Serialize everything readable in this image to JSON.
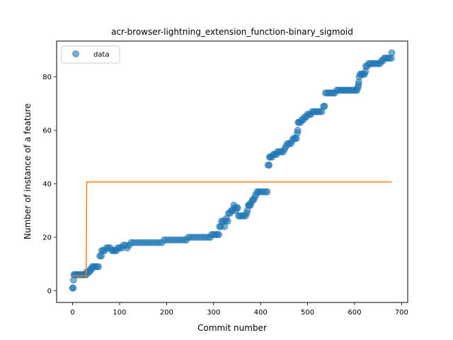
{
  "chart_data": {
    "type": "scatter",
    "title": "acr-browser-lightning_extension_function-binary_sigmoid",
    "xlabel": "Commit number",
    "ylabel": "Number of instance of a feature",
    "xlim": [
      -34,
      713
    ],
    "ylim": [
      -4.4,
      93.4
    ],
    "xticks": [
      0,
      100,
      200,
      300,
      400,
      500,
      600,
      700
    ],
    "yticks": [
      0,
      20,
      40,
      60,
      80
    ],
    "legend": {
      "placement": "top-left",
      "entries": [
        "data"
      ]
    },
    "grid": false,
    "colors": {
      "data": "#1f77b4",
      "fit": "#ff7f0e"
    },
    "series": [
      {
        "name": "data",
        "kind": "scatter",
        "points": [
          [
            0,
            1
          ],
          [
            1,
            1
          ],
          [
            2,
            4
          ],
          [
            3,
            6
          ],
          [
            5,
            6
          ],
          [
            8,
            6
          ],
          [
            11,
            6
          ],
          [
            14,
            6
          ],
          [
            17,
            6
          ],
          [
            20,
            6
          ],
          [
            23,
            6
          ],
          [
            26,
            6
          ],
          [
            29,
            6
          ],
          [
            30,
            7
          ],
          [
            33,
            7
          ],
          [
            36,
            7
          ],
          [
            38,
            8
          ],
          [
            40,
            8
          ],
          [
            42,
            9
          ],
          [
            45,
            9
          ],
          [
            48,
            9
          ],
          [
            52,
            9
          ],
          [
            55,
            9
          ],
          [
            58,
            13
          ],
          [
            61,
            13
          ],
          [
            62,
            15
          ],
          [
            65,
            15
          ],
          [
            68,
            15
          ],
          [
            72,
            16
          ],
          [
            76,
            16
          ],
          [
            80,
            16
          ],
          [
            84,
            15
          ],
          [
            87,
            15
          ],
          [
            90,
            15
          ],
          [
            93,
            15
          ],
          [
            96,
            16
          ],
          [
            100,
            16
          ],
          [
            104,
            16
          ],
          [
            108,
            17
          ],
          [
            112,
            17
          ],
          [
            116,
            16
          ],
          [
            120,
            17
          ],
          [
            125,
            18
          ],
          [
            130,
            18
          ],
          [
            136,
            18
          ],
          [
            142,
            18
          ],
          [
            148,
            18
          ],
          [
            154,
            18
          ],
          [
            160,
            18
          ],
          [
            166,
            18
          ],
          [
            172,
            18
          ],
          [
            178,
            18
          ],
          [
            184,
            18
          ],
          [
            190,
            18
          ],
          [
            195,
            19
          ],
          [
            201,
            19
          ],
          [
            207,
            19
          ],
          [
            213,
            19
          ],
          [
            219,
            19
          ],
          [
            225,
            19
          ],
          [
            231,
            19
          ],
          [
            237,
            19
          ],
          [
            242,
            19
          ],
          [
            246,
            20
          ],
          [
            252,
            20
          ],
          [
            258,
            20
          ],
          [
            264,
            20
          ],
          [
            270,
            20
          ],
          [
            276,
            20
          ],
          [
            282,
            20
          ],
          [
            288,
            20
          ],
          [
            293,
            20
          ],
          [
            296,
            21
          ],
          [
            300,
            21
          ],
          [
            304,
            21
          ],
          [
            308,
            21
          ],
          [
            311,
            21
          ],
          [
            313,
            24
          ],
          [
            315,
            24
          ],
          [
            317,
            26
          ],
          [
            320,
            26
          ],
          [
            323,
            24
          ],
          [
            325,
            26
          ],
          [
            327,
            27
          ],
          [
            330,
            26
          ],
          [
            332,
            29
          ],
          [
            335,
            29
          ],
          [
            338,
            30
          ],
          [
            340,
            30
          ],
          [
            343,
            32
          ],
          [
            345,
            31
          ],
          [
            347,
            30
          ],
          [
            349,
            31
          ],
          [
            351,
            31
          ],
          [
            353,
            28
          ],
          [
            356,
            28
          ],
          [
            360,
            28
          ],
          [
            364,
            28
          ],
          [
            368,
            28
          ],
          [
            370,
            29
          ],
          [
            372,
            30
          ],
          [
            374,
            32
          ],
          [
            376,
            32
          ],
          [
            378,
            32
          ],
          [
            380,
            33
          ],
          [
            383,
            34
          ],
          [
            385,
            34
          ],
          [
            388,
            35
          ],
          [
            390,
            36
          ],
          [
            393,
            37
          ],
          [
            396,
            37
          ],
          [
            400,
            37
          ],
          [
            405,
            37
          ],
          [
            410,
            37
          ],
          [
            414,
            37
          ],
          [
            416,
            47
          ],
          [
            418,
            47
          ],
          [
            419,
            50
          ],
          [
            421,
            50
          ],
          [
            424,
            50
          ],
          [
            427,
            51
          ],
          [
            430,
            51
          ],
          [
            434,
            51
          ],
          [
            436,
            52
          ],
          [
            440,
            52
          ],
          [
            444,
            52
          ],
          [
            448,
            52
          ],
          [
            451,
            53
          ],
          [
            454,
            54
          ],
          [
            457,
            55
          ],
          [
            460,
            55
          ],
          [
            464,
            55
          ],
          [
            467,
            56
          ],
          [
            470,
            57
          ],
          [
            473,
            57
          ],
          [
            476,
            57
          ],
          [
            478,
            59
          ],
          [
            479,
            60
          ],
          [
            480,
            63
          ],
          [
            482,
            63
          ],
          [
            485,
            63
          ],
          [
            488,
            64
          ],
          [
            491,
            64
          ],
          [
            494,
            65
          ],
          [
            497,
            65
          ],
          [
            500,
            66
          ],
          [
            504,
            66
          ],
          [
            507,
            66
          ],
          [
            510,
            67
          ],
          [
            514,
            67
          ],
          [
            518,
            67
          ],
          [
            522,
            67
          ],
          [
            526,
            67
          ],
          [
            530,
            67
          ],
          [
            534,
            69
          ],
          [
            536,
            69
          ],
          [
            538,
            74
          ],
          [
            542,
            74
          ],
          [
            546,
            74
          ],
          [
            550,
            74
          ],
          [
            554,
            74
          ],
          [
            558,
            74
          ],
          [
            562,
            75
          ],
          [
            566,
            75
          ],
          [
            570,
            75
          ],
          [
            574,
            75
          ],
          [
            578,
            75
          ],
          [
            582,
            75
          ],
          [
            586,
            75
          ],
          [
            590,
            75
          ],
          [
            594,
            75
          ],
          [
            598,
            75
          ],
          [
            602,
            75
          ],
          [
            605,
            75
          ],
          [
            607,
            76
          ],
          [
            608,
            77
          ],
          [
            609,
            78
          ],
          [
            610,
            80
          ],
          [
            612,
            81
          ],
          [
            615,
            81
          ],
          [
            618,
            81
          ],
          [
            621,
            81
          ],
          [
            623,
            82
          ],
          [
            624,
            84
          ],
          [
            627,
            84
          ],
          [
            630,
            85
          ],
          [
            634,
            85
          ],
          [
            638,
            85
          ],
          [
            642,
            85
          ],
          [
            646,
            85
          ],
          [
            650,
            85
          ],
          [
            654,
            85
          ],
          [
            657,
            86
          ],
          [
            660,
            86
          ],
          [
            663,
            87
          ],
          [
            666,
            87
          ],
          [
            670,
            87
          ],
          [
            674,
            87
          ],
          [
            678,
            87
          ],
          [
            679,
            89
          ]
        ]
      },
      {
        "name": "",
        "kind": "line",
        "points": [
          [
            0,
            5.5
          ],
          [
            29,
            5.5
          ],
          [
            30,
            40.7
          ],
          [
            679,
            40.7
          ]
        ]
      }
    ]
  }
}
